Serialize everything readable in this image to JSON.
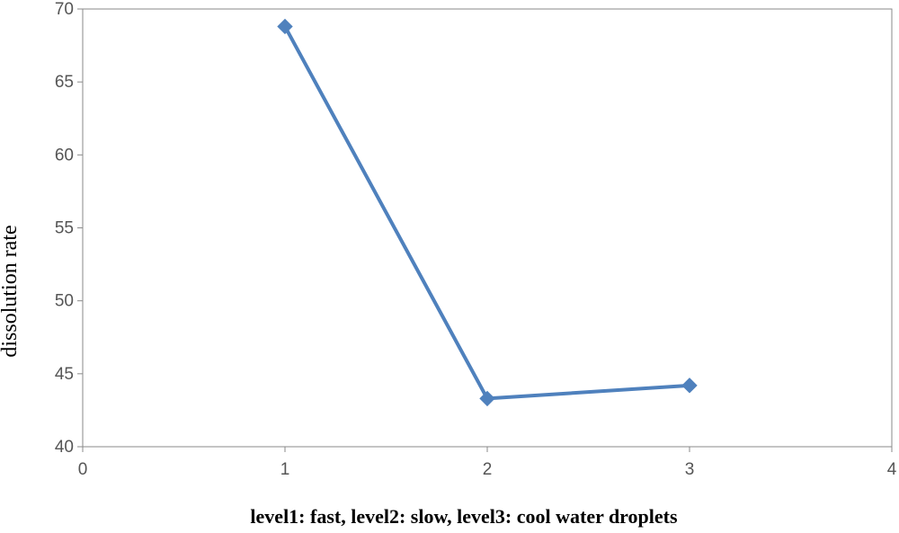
{
  "chart_data": {
    "type": "scatter",
    "title": "",
    "xlabel": "level1: fast, level2: slow, level3: cool water droplets",
    "ylabel": "dissolution rate",
    "xlim": [
      0,
      4
    ],
    "ylim": [
      40,
      70
    ],
    "x_ticks": [
      0,
      1,
      2,
      3,
      4
    ],
    "y_ticks": [
      40,
      45,
      50,
      55,
      60,
      65,
      70
    ],
    "grid": false,
    "legend": "none",
    "marker": "diamond",
    "connected": true,
    "series": [
      {
        "color": "#4f81bd",
        "points": [
          {
            "x": 1,
            "y": 68.8
          },
          {
            "x": 2,
            "y": 43.3
          },
          {
            "x": 3,
            "y": 44.2
          }
        ]
      }
    ]
  }
}
